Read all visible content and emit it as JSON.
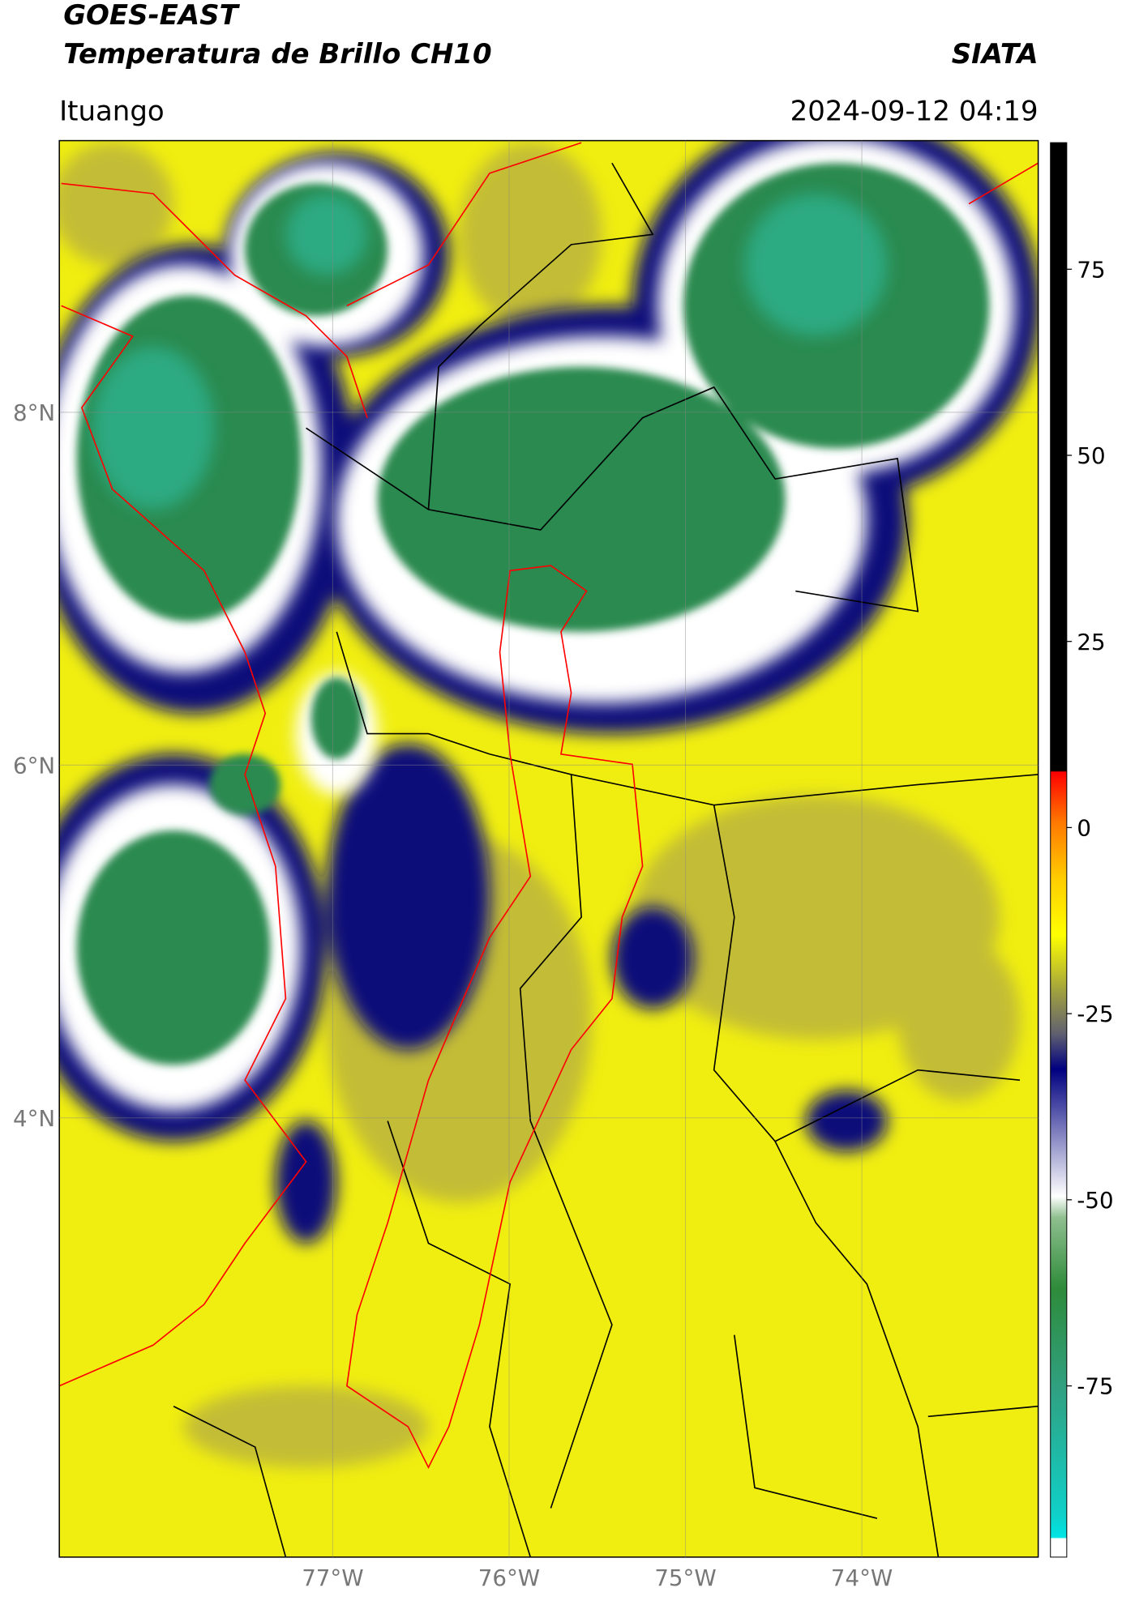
{
  "header": {
    "title": "GOES-EAST",
    "subtitle": "Temperatura de Brillo CH10",
    "agency": "SIATA",
    "location": "Ituango",
    "timestamp": "2024-09-12 04:19"
  },
  "map": {
    "xlim": [
      -78.55,
      -73.0
    ],
    "ylim": [
      1.51,
      9.54
    ],
    "grid": true,
    "xticks": [
      {
        "value": -77,
        "label": "77°W"
      },
      {
        "value": -76,
        "label": "76°W"
      },
      {
        "value": -75,
        "label": "75°W"
      },
      {
        "value": -74,
        "label": "74°W"
      }
    ],
    "yticks": [
      {
        "value": 8,
        "label": "8°N"
      },
      {
        "value": 6,
        "label": "6°N"
      },
      {
        "value": 4,
        "label": "4°N"
      }
    ]
  },
  "colorbar": {
    "lim": [
      -98,
      92
    ],
    "ticks": [
      75,
      50,
      25,
      0,
      -25,
      -50,
      -75
    ]
  }
}
